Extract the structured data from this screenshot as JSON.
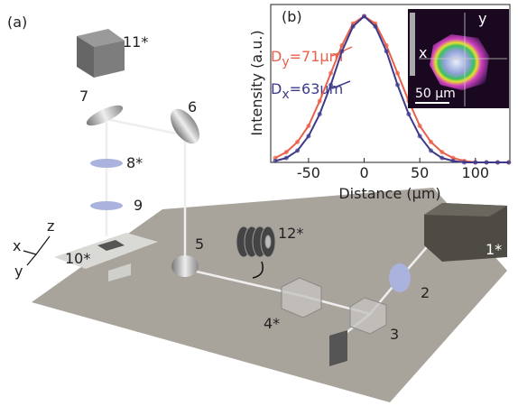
{
  "panel_a": {
    "label": "(a)",
    "components": {
      "c11": "11*",
      "c7": "7",
      "c6": "6",
      "c8": "8*",
      "c9": "9",
      "c10": "10*",
      "c5": "5",
      "c12": "12*",
      "c1": "1*",
      "c2": "2",
      "c4": "4*",
      "c3": "3"
    },
    "axes": {
      "z": "z",
      "x": "x",
      "y": "y"
    }
  },
  "chart_data": {
    "type": "line",
    "panel_label": "(b)",
    "x_label": "Distance (μm)",
    "y_label": "Intensity (a.u.)",
    "annotations": [
      [
        "D",
        "y",
        "=71μm"
      ],
      [
        "D",
        "x",
        "=63μm"
      ]
    ],
    "inset": {
      "x": "x",
      "y": "y",
      "scale": "50 μm"
    },
    "x": [
      -80,
      -70,
      -60,
      -50,
      -40,
      -30,
      -20,
      -10,
      0,
      10,
      20,
      30,
      40,
      50,
      60,
      70,
      80,
      90,
      100,
      110,
      120,
      130
    ],
    "series": [
      {
        "color": "#e8604a",
        "values": [
          0.03,
          0.07,
          0.14,
          0.25,
          0.42,
          0.61,
          0.8,
          0.95,
          1,
          0.95,
          0.8,
          0.61,
          0.42,
          0.25,
          0.14,
          0.07,
          0.03,
          0.01,
          0,
          0,
          0,
          0
        ]
      },
      {
        "color": "#3d3a8c",
        "values": [
          0.01,
          0.03,
          0.08,
          0.18,
          0.33,
          0.53,
          0.76,
          0.93,
          1,
          0.93,
          0.76,
          0.53,
          0.33,
          0.18,
          0.08,
          0.03,
          0.01,
          0,
          0,
          0,
          0,
          0
        ]
      }
    ],
    "xlim": [
      -84,
      131
    ],
    "ylim": [
      0,
      1.08
    ],
    "xticks": [
      -50,
      0,
      50,
      100
    ]
  }
}
